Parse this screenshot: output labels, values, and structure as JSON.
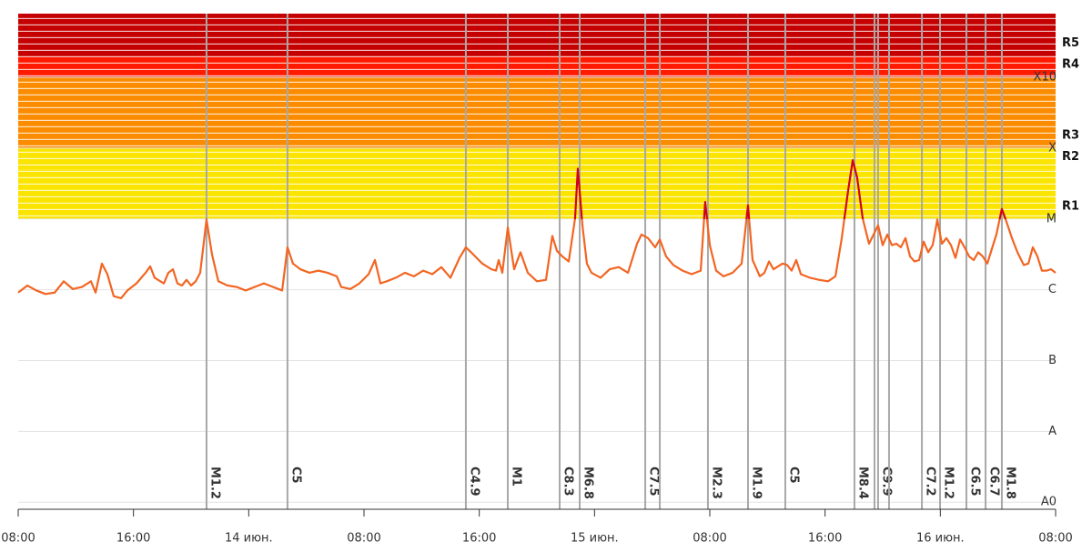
{
  "chart_data": {
    "type": "line",
    "xlim": [
      0,
      72
    ],
    "xticks": [
      {
        "value": 0,
        "label": "08:00"
      },
      {
        "value": 8,
        "label": "16:00"
      },
      {
        "value": 16,
        "label": "14 июн."
      },
      {
        "value": 24,
        "label": "08:00"
      },
      {
        "value": 32,
        "label": "16:00"
      },
      {
        "value": 40,
        "label": "15 июн."
      },
      {
        "value": 48,
        "label": "08:00"
      },
      {
        "value": 56,
        "label": "16:00"
      },
      {
        "value": 64,
        "label": "16 июн."
      },
      {
        "value": 72,
        "label": "08:00"
      }
    ],
    "ylim": [
      -9.1,
      -2.1
    ],
    "yticks": [
      {
        "value": -9,
        "label": "A0"
      },
      {
        "value": -8,
        "label": "A"
      },
      {
        "value": -7,
        "label": "B"
      },
      {
        "value": -6,
        "label": "C"
      },
      {
        "value": -5,
        "label": "M"
      },
      {
        "value": -4,
        "label": "X"
      },
      {
        "value": -3,
        "label": "X10"
      }
    ],
    "grid": true,
    "bands": [
      {
        "label": "R1",
        "from": -5,
        "to": -4.3,
        "color": "#fbe500"
      },
      {
        "label": "R2",
        "from": -4.3,
        "to": -4,
        "color": "#fbe500"
      },
      {
        "label": "R3",
        "from": -4,
        "to": -3,
        "color": "#fb8c00"
      },
      {
        "label": "R4",
        "from": -3,
        "to": -2.7,
        "color": "#ff1a00"
      },
      {
        "label": "R5",
        "from": -2.7,
        "to": -2.1,
        "color": "#c40000"
      }
    ],
    "color": "#f26522",
    "alert_level": -5,
    "alert_color": "#d0021b",
    "x": [
      0,
      0.63,
      1.26,
      1.89,
      2.53,
      3.16,
      3.79,
      4.42,
      5.05,
      5.37,
      5.81,
      6.19,
      6.63,
      7.14,
      7.58,
      8.21,
      8.84,
      9.16,
      9.47,
      10.11,
      10.42,
      10.74,
      11.05,
      11.37,
      11.68,
      12.0,
      12.32,
      12.63,
      13.07,
      13.45,
      13.89,
      14.53,
      15.16,
      15.79,
      16.42,
      17.05,
      17.68,
      18.32,
      18.69,
      19.07,
      19.58,
      20.21,
      20.84,
      21.47,
      22.11,
      22.42,
      23.05,
      23.68,
      24.32,
      24.76,
      25.14,
      25.58,
      26.21,
      26.84,
      27.47,
      28.11,
      28.74,
      29.37,
      30.0,
      30.63,
      31.07,
      31.58,
      32.21,
      32.84,
      33.16,
      33.35,
      33.6,
      33.98,
      34.42,
      34.86,
      35.37,
      36.0,
      36.63,
      37.07,
      37.39,
      37.77,
      38.21,
      38.65,
      38.84,
      39.16,
      39.47,
      39.79,
      40.42,
      41.05,
      41.68,
      42.32,
      42.95,
      43.26,
      43.71,
      44.21,
      44.53,
      44.97,
      45.47,
      46.11,
      46.74,
      47.37,
      47.68,
      48.0,
      48.44,
      48.95,
      49.58,
      50.21,
      50.65,
      50.97,
      51.47,
      51.79,
      52.11,
      52.42,
      53.05,
      53.37,
      53.68,
      54.0,
      54.32,
      54.95,
      55.58,
      56.21,
      56.72,
      57.16,
      57.6,
      57.92,
      58.23,
      58.61,
      59.05,
      59.37,
      59.68,
      60.0,
      60.32,
      60.63,
      60.95,
      61.26,
      61.58,
      61.9,
      62.21,
      62.53,
      62.84,
      63.16,
      63.47,
      63.79,
      64.11,
      64.42,
      64.74,
      65.05,
      65.37,
      65.68,
      66.0,
      66.32,
      66.63,
      66.95,
      67.26,
      67.58,
      67.89,
      68.27,
      68.59,
      68.97,
      69.35,
      69.79,
      70.11,
      70.42,
      70.74,
      71.05,
      71.37,
      71.68,
      72.0
    ],
    "values": [
      -6.04,
      -5.94,
      -6.01,
      -6.06,
      -6.04,
      -5.88,
      -5.99,
      -5.96,
      -5.88,
      -6.04,
      -5.63,
      -5.78,
      -6.09,
      -6.12,
      -6.01,
      -5.91,
      -5.76,
      -5.67,
      -5.83,
      -5.91,
      -5.76,
      -5.71,
      -5.91,
      -5.94,
      -5.86,
      -5.94,
      -5.88,
      -5.76,
      -5.01,
      -5.5,
      -5.88,
      -5.94,
      -5.96,
      -6.01,
      -5.96,
      -5.91,
      -5.96,
      -6.01,
      -5.4,
      -5.63,
      -5.71,
      -5.76,
      -5.73,
      -5.76,
      -5.81,
      -5.96,
      -5.99,
      -5.91,
      -5.78,
      -5.58,
      -5.91,
      -5.88,
      -5.83,
      -5.76,
      -5.81,
      -5.73,
      -5.78,
      -5.68,
      -5.83,
      -5.55,
      -5.4,
      -5.5,
      -5.63,
      -5.71,
      -5.73,
      -5.58,
      -5.76,
      -5.12,
      -5.71,
      -5.47,
      -5.76,
      -5.88,
      -5.86,
      -5.24,
      -5.45,
      -5.53,
      -5.6,
      -4.99,
      -4.29,
      -5.09,
      -5.63,
      -5.76,
      -5.83,
      -5.71,
      -5.68,
      -5.76,
      -5.35,
      -5.22,
      -5.27,
      -5.4,
      -5.29,
      -5.53,
      -5.65,
      -5.73,
      -5.78,
      -5.73,
      -4.76,
      -5.37,
      -5.73,
      -5.81,
      -5.76,
      -5.63,
      -4.81,
      -5.58,
      -5.81,
      -5.76,
      -5.6,
      -5.71,
      -5.63,
      -5.65,
      -5.73,
      -5.58,
      -5.78,
      -5.83,
      -5.86,
      -5.88,
      -5.81,
      -5.27,
      -4.6,
      -4.17,
      -4.42,
      -4.99,
      -5.35,
      -5.22,
      -5.09,
      -5.37,
      -5.22,
      -5.37,
      -5.35,
      -5.4,
      -5.27,
      -5.53,
      -5.6,
      -5.58,
      -5.32,
      -5.47,
      -5.37,
      -5.01,
      -5.35,
      -5.27,
      -5.37,
      -5.55,
      -5.29,
      -5.4,
      -5.53,
      -5.58,
      -5.47,
      -5.53,
      -5.63,
      -5.42,
      -5.22,
      -4.86,
      -5.04,
      -5.27,
      -5.47,
      -5.65,
      -5.63,
      -5.4,
      -5.53,
      -5.73,
      -5.73,
      -5.71,
      -5.76
    ],
    "events": {
      "x": [
        13.07,
        18.69,
        31.07,
        33.98,
        37.58,
        38.97,
        43.52,
        44.53,
        47.87,
        50.65,
        53.24,
        58.04,
        59.43,
        59.68,
        60.44,
        62.72,
        63.98,
        65.81,
        67.14,
        68.27
      ],
      "labels": [
        "M1.2",
        "C5",
        "C4.9",
        "M1",
        "C8.3",
        "M6.8",
        "C7.5",
        null,
        "M2.3",
        "M1.9",
        "C5",
        "M8.4",
        null,
        "C9.9",
        null,
        "C7.2",
        "M1.2",
        "C6.5",
        "C6.7",
        "M1.8"
      ],
      "line_color": "#a8a8a8",
      "label_colors": {
        "C": "#f0a30a",
        "M": "#d9342b"
      }
    }
  }
}
